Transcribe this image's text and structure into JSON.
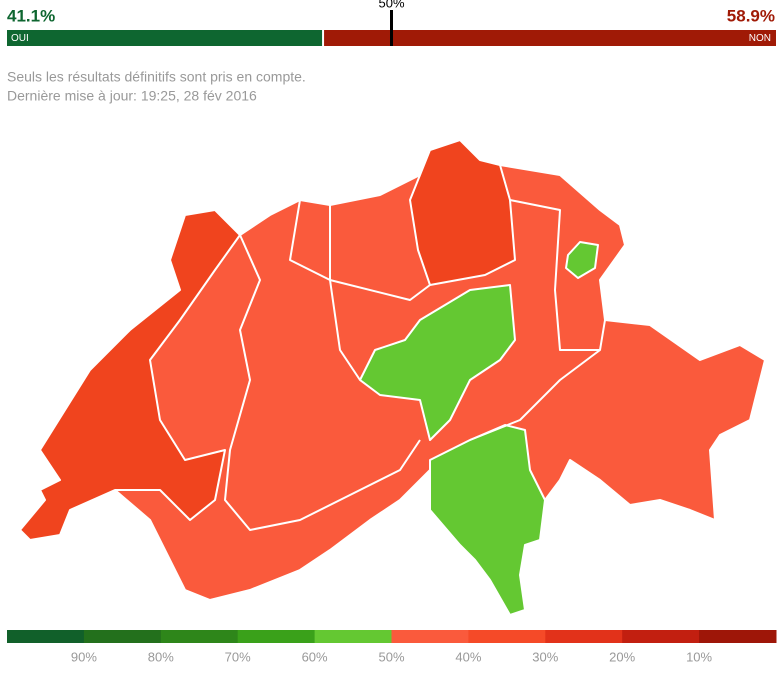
{
  "result": {
    "yes": {
      "name": "OUI",
      "value": 41.1,
      "label": "41.1%",
      "color": "#0e6630"
    },
    "no": {
      "name": "NON",
      "value": 58.9,
      "label": "58.9%",
      "color": "#a01a06"
    },
    "majority": {
      "value": 50,
      "label": "50%"
    }
  },
  "notes": [
    "Seuls les résultats définitifs sont pris en compte.",
    "Dernière mise à jour: 19:25, 28 fév 2016"
  ],
  "legend": {
    "colors": [
      "#11602a",
      "#23701c",
      "#2e861a",
      "#3aa11a",
      "#64c832",
      "#fa5a3c",
      "#f54a28",
      "#e2321a",
      "#c21f10",
      "#9e1608"
    ],
    "ticks": [
      {
        "value": 90,
        "label": "90%"
      },
      {
        "value": 80,
        "label": "80%"
      },
      {
        "value": 70,
        "label": "70%"
      },
      {
        "value": 60,
        "label": "60%"
      },
      {
        "value": 50,
        "label": "50%"
      },
      {
        "value": 40,
        "label": "40%"
      },
      {
        "value": 30,
        "label": "30%"
      },
      {
        "value": 20,
        "label": "20%"
      },
      {
        "value": 10,
        "label": "10%"
      }
    ]
  }
}
